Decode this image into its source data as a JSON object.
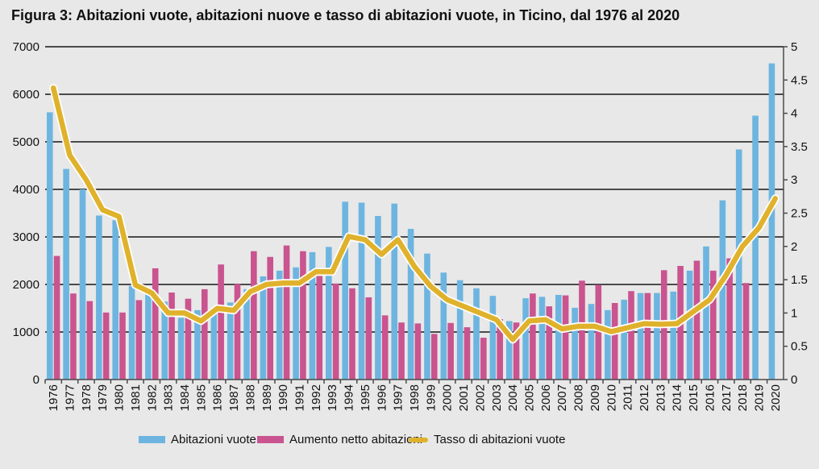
{
  "chart_data": {
    "type": "bar",
    "title": "Figura 3: Abitazioni vuote, abitazioni nuove e tasso di abitazioni vuote, in Ticino, dal 1976 al 2020",
    "xlabel": "",
    "ylabel": "",
    "ylim": [
      0,
      7000
    ],
    "y2lim": [
      0,
      5
    ],
    "yticks": [
      "0",
      "1000",
      "2000",
      "3000",
      "4000",
      "5000",
      "6000",
      "7000"
    ],
    "y2ticks": [
      "0",
      "0.5",
      "1",
      "1.5",
      "2",
      "2.5",
      "3",
      "3.5",
      "4",
      "4.5",
      "5"
    ],
    "grid": true,
    "legend_position": "bottom",
    "categories": [
      "1976",
      "1977",
      "1978",
      "1979",
      "1980",
      "1981",
      "1982",
      "1983",
      "1984",
      "1985",
      "1986",
      "1987",
      "1988",
      "1989",
      "1990",
      "1991",
      "1992",
      "1993",
      "1994",
      "1995",
      "1996",
      "1997",
      "1998",
      "1999",
      "2000",
      "2001",
      "2002",
      "2003",
      "2004",
      "2005",
      "2006",
      "2007",
      "2008",
      "2009",
      "2010",
      "2011",
      "2012",
      "2013",
      "2014",
      "2015",
      "2016",
      "2017",
      "2018",
      "2019",
      "2020"
    ],
    "series": [
      {
        "name": "Abitazioni vuote",
        "type": "bar",
        "axis": "left",
        "color": "#6db5e0",
        "values": [
          5620,
          4430,
          4000,
          3450,
          3350,
          1970,
          1800,
          1640,
          1300,
          1460,
          1420,
          1620,
          1900,
          2170,
          2290,
          2360,
          2680,
          2790,
          3740,
          3720,
          3440,
          3700,
          3170,
          2650,
          2250,
          2090,
          1920,
          1760,
          1230,
          1710,
          1740,
          1780,
          1510,
          1590,
          1460,
          1680,
          1820,
          1820,
          1850,
          2290,
          2800,
          3770,
          4840,
          5550,
          6650
        ]
      },
      {
        "name": "Aumento netto abitazioni",
        "type": "bar",
        "axis": "left",
        "color": "#c9548f",
        "values": [
          2600,
          1810,
          1650,
          1410,
          1410,
          1670,
          2340,
          1830,
          1700,
          1900,
          2420,
          2010,
          2700,
          2580,
          2820,
          2700,
          2180,
          2020,
          1920,
          1730,
          1350,
          1200,
          1180,
          960,
          1190,
          1100,
          880,
          1270,
          1200,
          1810,
          1540,
          1770,
          2080,
          1990,
          1610,
          1860,
          1820,
          2300,
          2390,
          2500,
          2290,
          2550,
          2030,
          null,
          null
        ]
      },
      {
        "name": "Tasso di abitazioni vuote",
        "type": "line",
        "axis": "right",
        "color": "#e0b22c",
        "values": [
          4.38,
          3.37,
          3.0,
          2.55,
          2.45,
          1.42,
          1.3,
          1.0,
          1.0,
          0.88,
          1.07,
          1.04,
          1.32,
          1.43,
          1.45,
          1.45,
          1.62,
          1.62,
          2.15,
          2.1,
          1.88,
          2.1,
          1.7,
          1.4,
          1.2,
          1.1,
          1.0,
          0.9,
          0.6,
          0.88,
          0.9,
          0.76,
          0.8,
          0.8,
          0.72,
          0.78,
          0.84,
          0.83,
          0.84,
          1.02,
          1.2,
          1.57,
          2.0,
          2.28,
          2.72
        ]
      }
    ]
  }
}
